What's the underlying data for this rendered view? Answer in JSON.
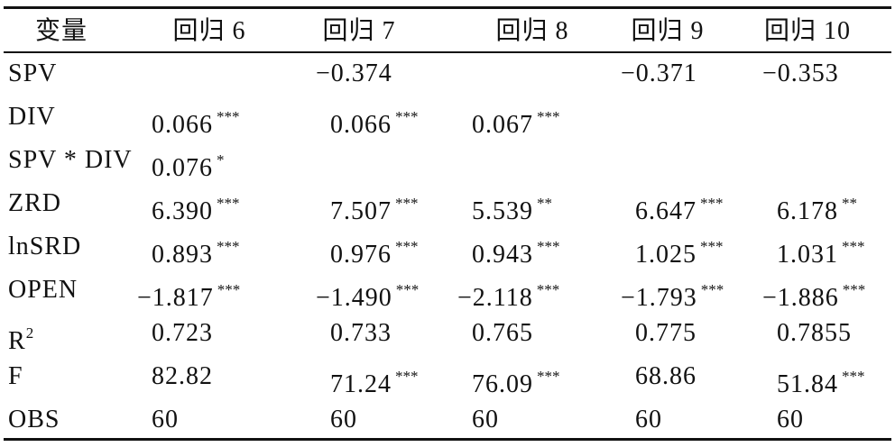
{
  "table": {
    "header": [
      "变量",
      "回归 6",
      "回归 7",
      "回归 8",
      "回归 9",
      "回归 10"
    ],
    "rows": [
      {
        "label": "SPV",
        "cells": [
          null,
          {
            "value": "−0.374"
          },
          null,
          {
            "value": "−0.371"
          },
          {
            "value": "−0.353"
          }
        ]
      },
      {
        "label": "DIV",
        "cells": [
          {
            "value": "0.066",
            "stars": "***"
          },
          {
            "value": "0.066",
            "stars": "***"
          },
          {
            "value": "0.067",
            "stars": "***"
          },
          null,
          null
        ]
      },
      {
        "label": "SPV * DIV",
        "cells": [
          {
            "value": "0.076",
            "stars": "*"
          },
          null,
          null,
          null,
          null
        ]
      },
      {
        "label": "ZRD",
        "cells": [
          {
            "value": "6.390",
            "stars": "***"
          },
          {
            "value": "7.507",
            "stars": "***"
          },
          {
            "value": "5.539",
            "stars": "**"
          },
          {
            "value": "6.647",
            "stars": "***"
          },
          {
            "value": "6.178",
            "stars": "**"
          }
        ]
      },
      {
        "label": "lnSRD",
        "cells": [
          {
            "value": "0.893",
            "stars": "***"
          },
          {
            "value": "0.976",
            "stars": "***"
          },
          {
            "value": "0.943",
            "stars": "***"
          },
          {
            "value": "1.025",
            "stars": "***"
          },
          {
            "value": "1.031",
            "stars": "***"
          }
        ]
      },
      {
        "label": "OPEN",
        "cells": [
          {
            "value": "−1.817",
            "stars": "***"
          },
          {
            "value": "−1.490",
            "stars": "***"
          },
          {
            "value": "−2.118",
            "stars": "***"
          },
          {
            "value": "−1.793",
            "stars": "***"
          },
          {
            "value": "−1.886",
            "stars": "***"
          }
        ]
      },
      {
        "label": "R",
        "label_sup": "2",
        "cells": [
          {
            "value": "0.723"
          },
          {
            "value": "0.733"
          },
          {
            "value": "0.765"
          },
          {
            "value": "0.775"
          },
          {
            "value": "0.7855"
          }
        ]
      },
      {
        "label": "F",
        "cells": [
          {
            "value": "82.82"
          },
          {
            "value": "71.24",
            "stars": "***"
          },
          {
            "value": "76.09",
            "stars": "***"
          },
          {
            "value": "68.86"
          },
          {
            "value": "51.84",
            "stars": "***"
          }
        ]
      },
      {
        "label": "OBS",
        "cells": [
          {
            "value": "60"
          },
          {
            "value": "60"
          },
          {
            "value": "60"
          },
          {
            "value": "60"
          },
          {
            "value": "60"
          }
        ]
      }
    ]
  }
}
